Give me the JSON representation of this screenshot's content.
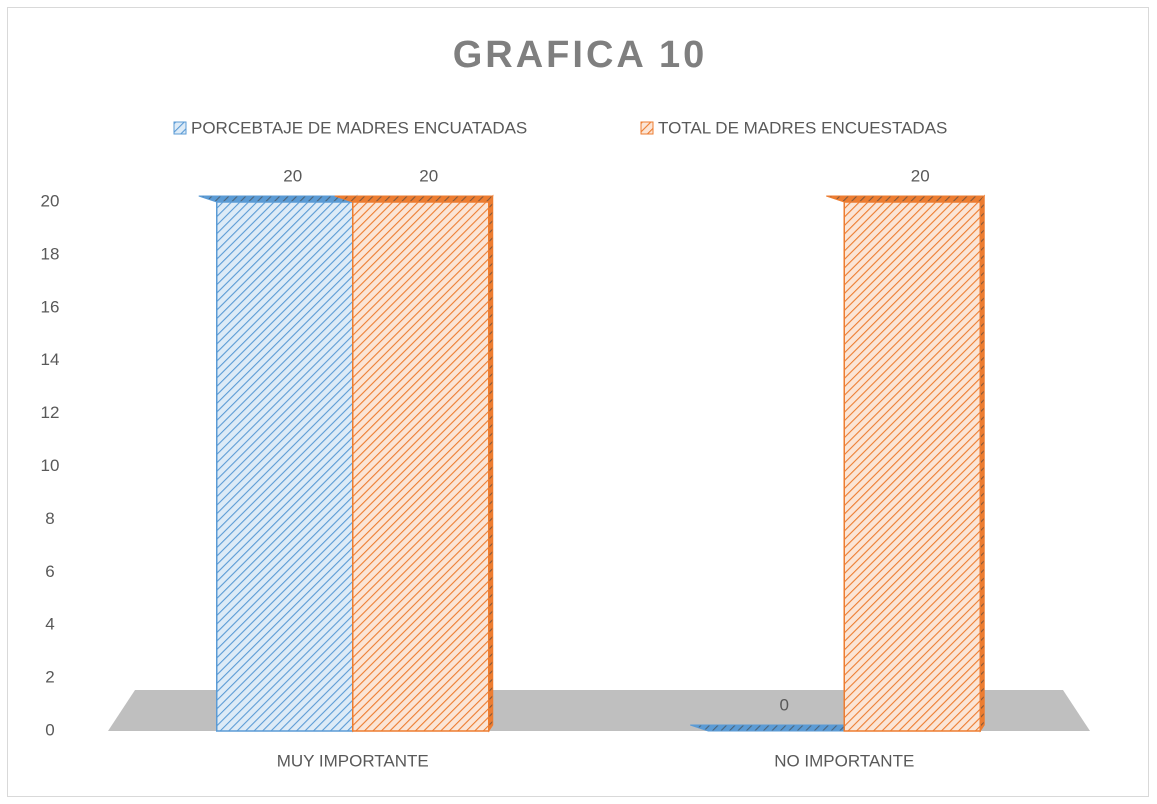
{
  "chart_data": {
    "type": "bar3d",
    "title": "GRAFICA 10",
    "categories": [
      "MUY IMPORTANTE",
      "NO IMPORTANTE"
    ],
    "series": [
      {
        "name": "PORCEBTAJE DE MADRES ENCUATADAS",
        "color": "#5b9bd5",
        "values": [
          20,
          0
        ]
      },
      {
        "name": "TOTAL DE MADRES ENCUESTADAS",
        "color": "#ed7d31",
        "values": [
          20,
          20
        ]
      }
    ],
    "ylim": [
      0,
      20
    ],
    "yticks": [
      0,
      2,
      4,
      6,
      8,
      10,
      12,
      14,
      16,
      18,
      20
    ],
    "grid": false,
    "legend": "top"
  }
}
